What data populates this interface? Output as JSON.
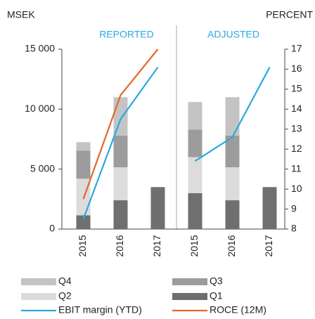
{
  "chart_data": {
    "type": "bar",
    "y_label": "MSEK",
    "y2_label": "PERCENT",
    "ylim": [
      0,
      15000
    ],
    "yticks": [
      0,
      {
        "value": 5000,
        "label": "5 000"
      },
      {
        "value": 10000,
        "label": "10 000"
      },
      {
        "value": 15000,
        "label": "15 000"
      }
    ],
    "y2lim": [
      8,
      17
    ],
    "y2ticks": [
      8,
      9,
      10,
      11,
      12,
      13,
      14,
      15,
      16,
      17
    ],
    "panels": [
      {
        "title": "REPORTED",
        "categories": [
          "2015",
          "2016",
          "2017"
        ],
        "series": [
          {
            "name": "Q1",
            "type": "bar",
            "color": "#6f6f6f",
            "values": [
              1150,
              2400,
              3500
            ]
          },
          {
            "name": "Q2",
            "type": "bar",
            "color": "#dcdcdc",
            "values": [
              3050,
              2750,
              null
            ]
          },
          {
            "name": "Q3",
            "type": "bar",
            "color": "#9c9c9c",
            "values": [
              2350,
              2650,
              null
            ]
          },
          {
            "name": "Q4",
            "type": "bar",
            "color": "#c4c4c4",
            "values": [
              700,
              3200,
              null
            ]
          },
          {
            "name": "EBIT margin (YTD)",
            "type": "line",
            "axis": "y2",
            "color": "#2aa9e0",
            "values": [
              8.5,
              13.5,
              16.1
            ]
          },
          {
            "name": "ROCE (12M)",
            "type": "line",
            "axis": "y2",
            "color": "#e0692a",
            "values": [
              9.5,
              14.7,
              17.0
            ]
          }
        ]
      },
      {
        "title": "ADJUSTED",
        "categories": [
          "2015",
          "2016",
          "2017"
        ],
        "series": [
          {
            "name": "Q1",
            "type": "bar",
            "color": "#6f6f6f",
            "values": [
              3000,
              2400,
              3500
            ]
          },
          {
            "name": "Q2",
            "type": "bar",
            "color": "#dcdcdc",
            "values": [
              3000,
              2750,
              null
            ]
          },
          {
            "name": "Q3",
            "type": "bar",
            "color": "#9c9c9c",
            "values": [
              2300,
              2650,
              null
            ]
          },
          {
            "name": "Q4",
            "type": "bar",
            "color": "#c4c4c4",
            "values": [
              2300,
              3200,
              null
            ]
          },
          {
            "name": "EBIT margin (YTD)",
            "type": "line",
            "axis": "y2",
            "color": "#2aa9e0",
            "values": [
              11.4,
              12.6,
              16.1
            ]
          }
        ]
      }
    ]
  }
}
